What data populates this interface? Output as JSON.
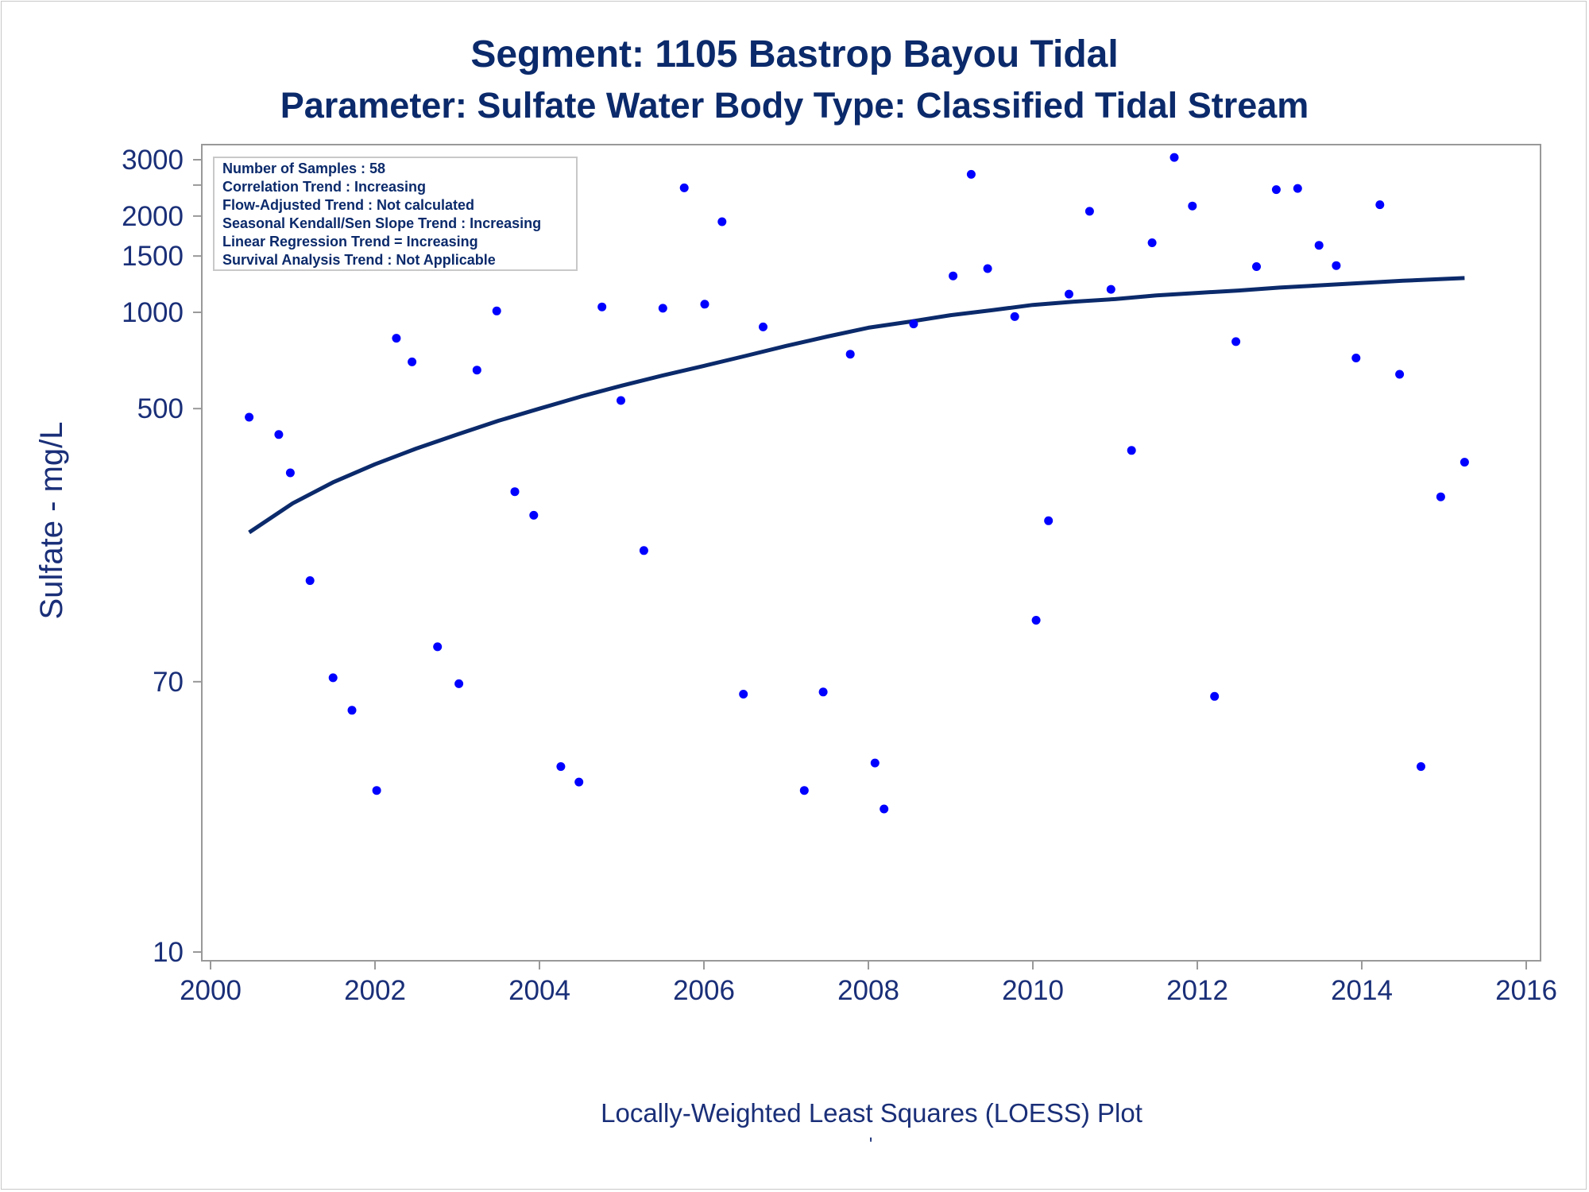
{
  "titles": {
    "line1": "Segment: 1105  Bastrop Bayou Tidal",
    "line2": "Parameter: Sulfate   Water Body Type: Classified Tidal Stream"
  },
  "stats_box": [
    "Number of Samples : 58",
    "Correlation Trend : Increasing",
    "Flow-Adjusted Trend : Not calculated",
    "Seasonal Kendall/Sen Slope Trend : Increasing",
    "Linear Regression Trend = Increasing",
    "Survival Analysis Trend : Not Applicable"
  ],
  "footnote": {
    "label": "Locally-Weighted Least Squares (LOESS) Plot",
    "mark": "'"
  },
  "colors": {
    "points": "#0000ff",
    "curve": "#0b2a6b",
    "text": "#1a2f78",
    "axis": "#999999"
  },
  "chart_data": {
    "type": "scatter",
    "title": "Segment: 1105  Bastrop Bayou Tidal",
    "subtitle": "Parameter: Sulfate   Water Body Type: Classified Tidal Stream",
    "xlabel": "",
    "ylabel": "Sulfate - mg/L",
    "xlim": [
      2000,
      2016
    ],
    "ylim": [
      10,
      3300
    ],
    "yscale": "log",
    "xticks": [
      2000,
      2002,
      2004,
      2006,
      2008,
      2010,
      2012,
      2014,
      2016
    ],
    "xtick_labels": [
      "2000",
      "2002",
      "2004",
      "2006",
      "2008",
      "2010",
      "2012",
      "2014",
      "2016"
    ],
    "yticks": [
      10,
      70,
      500,
      1000,
      1500,
      2000,
      3000
    ],
    "ytick_labels": [
      "10",
      "70",
      "500",
      "1000",
      "1500",
      "2000",
      "3000"
    ],
    "ytick_minor": [
      2500
    ],
    "grid": false,
    "legend": "none",
    "series": [
      {
        "type": "scatter",
        "x": [
          2000.47,
          2000.83,
          2000.97,
          2001.21,
          2001.49,
          2001.72,
          2002.02,
          2002.26,
          2002.45,
          2002.76,
          2003.02,
          2003.24,
          2003.48,
          2003.7,
          2003.93,
          2004.26,
          2004.48,
          2004.76,
          2004.99,
          2005.27,
          2005.5,
          2005.76,
          2006.01,
          2006.22,
          2006.48,
          2006.72,
          2007.22,
          2007.45,
          2007.78,
          2008.08,
          2008.19,
          2008.55,
          2009.03,
          2009.25,
          2009.45,
          2009.78,
          2010.04,
          2010.19,
          2010.44,
          2010.69,
          2010.95,
          2011.2,
          2011.45,
          2011.72,
          2011.94,
          2012.21,
          2012.47,
          2012.72,
          2012.96,
          2013.22,
          2013.48,
          2013.69,
          2013.93,
          2014.22,
          2014.46,
          2014.72,
          2014.96,
          2015.25
        ],
        "y": [
          470,
          415,
          315,
          145,
          72,
          57,
          32,
          830,
          700,
          90,
          69,
          660,
          1010,
          275,
          232,
          38,
          34,
          1040,
          530,
          180,
          1030,
          2450,
          1060,
          1920,
          64,
          900,
          32,
          65,
          740,
          39,
          28,
          920,
          1300,
          2700,
          1370,
          970,
          109,
          223,
          1140,
          2070,
          1180,
          370,
          1650,
          3050,
          2150,
          63,
          810,
          1390,
          2420,
          2440,
          1620,
          1400,
          720,
          2170,
          640,
          38,
          265,
          340
        ]
      },
      {
        "type": "line",
        "name": "",
        "x": [
          2000.47,
          2001,
          2001.5,
          2002,
          2002.5,
          2003,
          2003.5,
          2004,
          2004.5,
          2005,
          2005.5,
          2006,
          2006.5,
          2007,
          2007.5,
          2008,
          2008.5,
          2009,
          2009.5,
          2010,
          2010.5,
          2011,
          2011.5,
          2012,
          2012.5,
          2013,
          2013.5,
          2014,
          2014.5,
          2015,
          2015.25
        ],
        "y": [
          205,
          253,
          295,
          335,
          375,
          415,
          458,
          500,
          545,
          590,
          635,
          680,
          730,
          785,
          840,
          895,
          935,
          980,
          1015,
          1055,
          1080,
          1100,
          1130,
          1150,
          1170,
          1195,
          1215,
          1235,
          1255,
          1272,
          1280
        ]
      }
    ]
  }
}
